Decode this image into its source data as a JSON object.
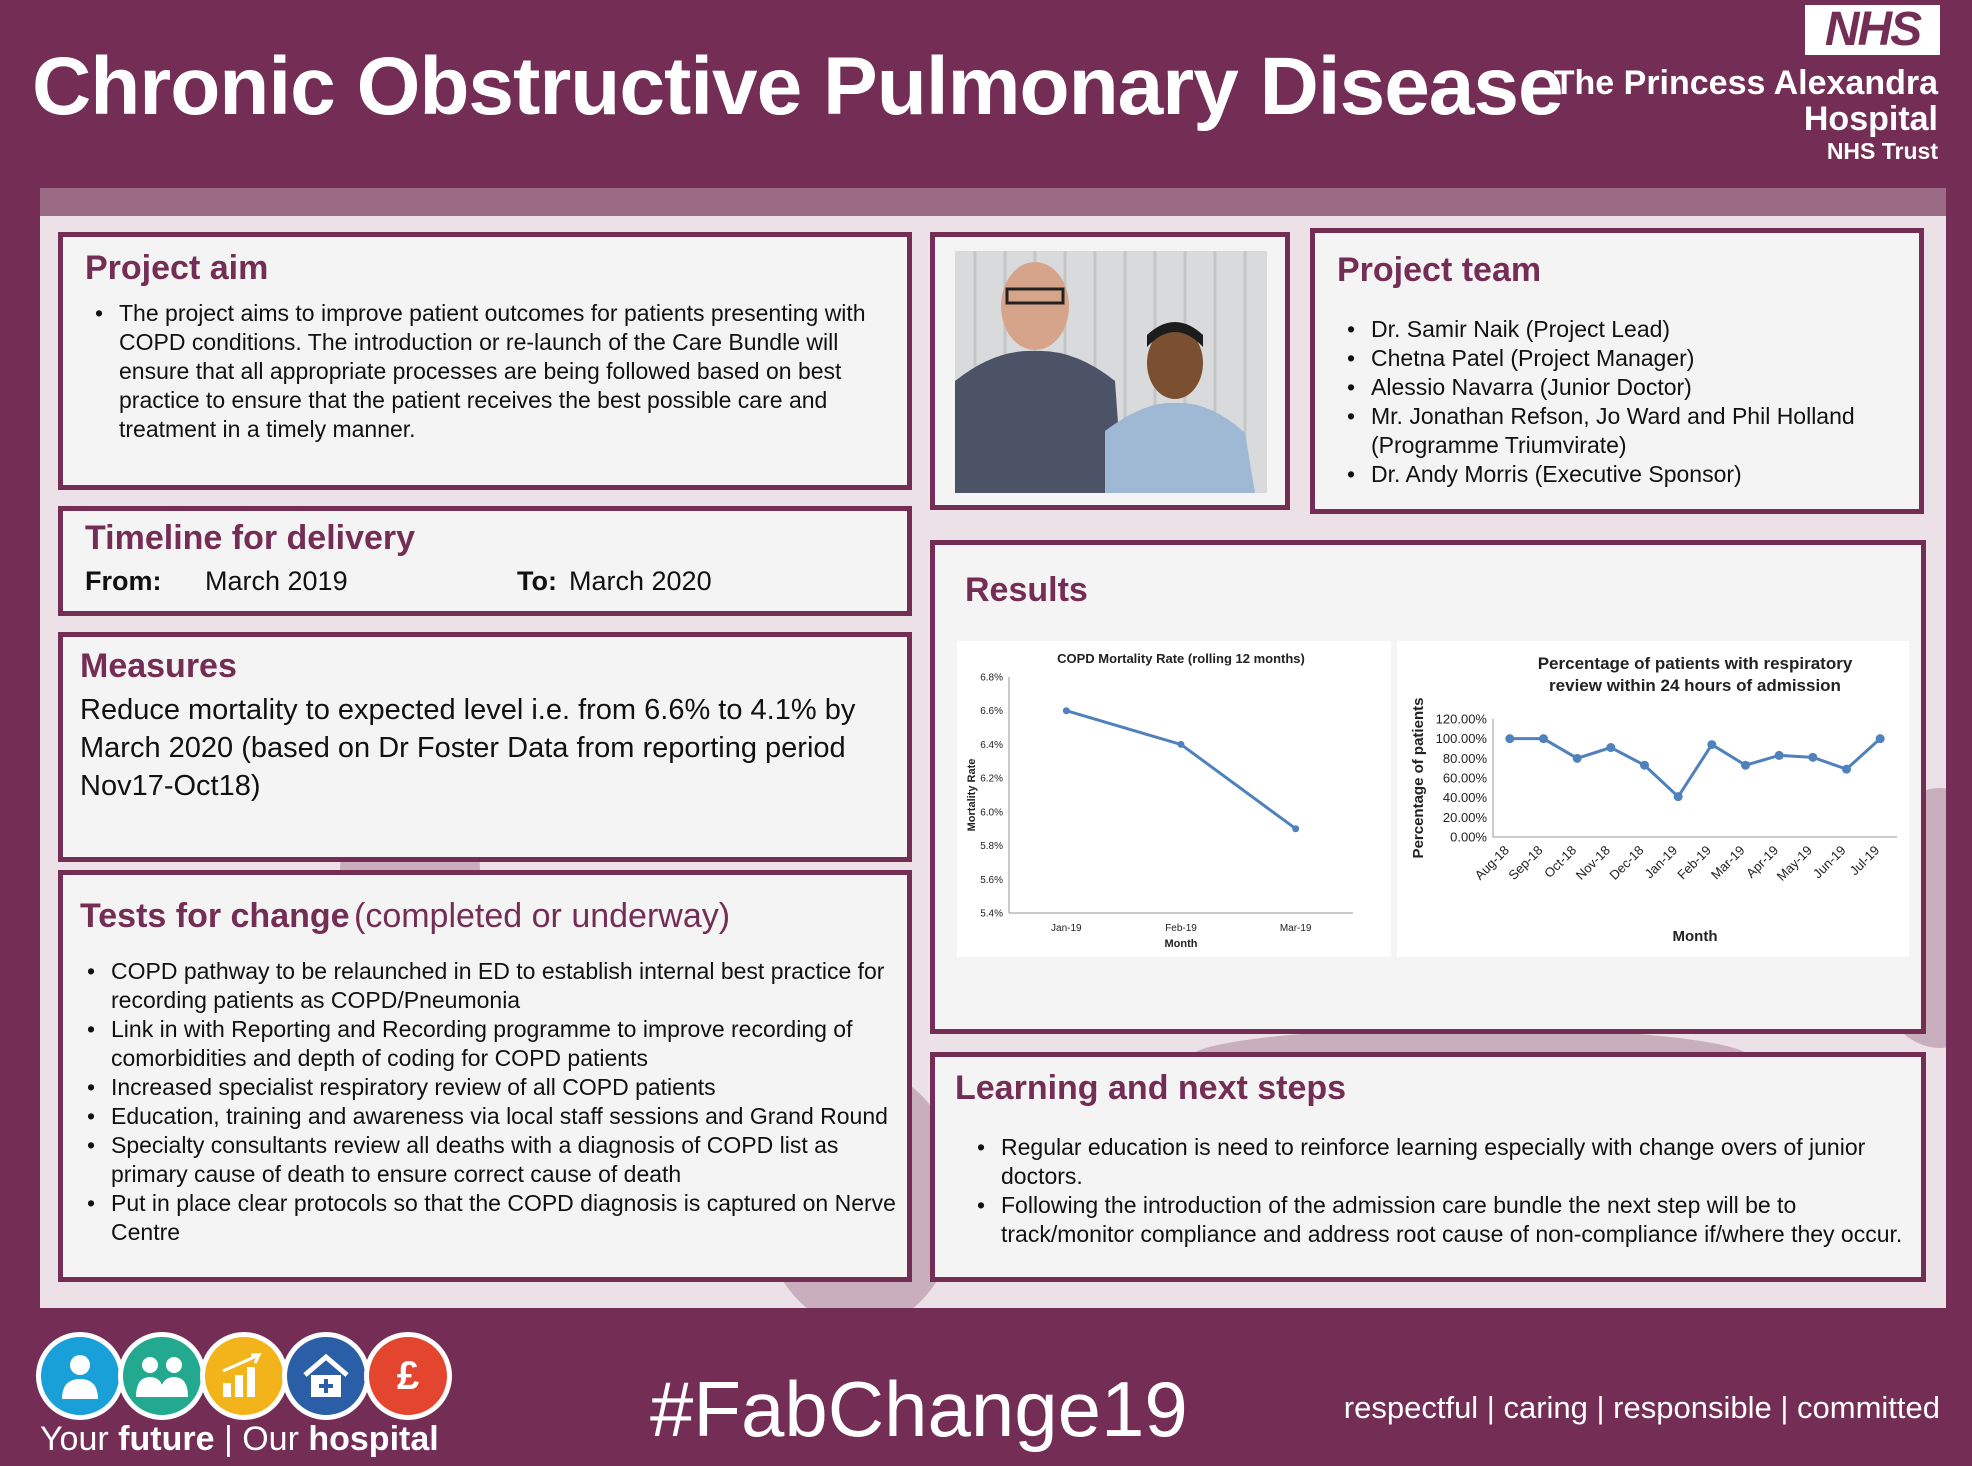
{
  "header": {
    "title": "Chronic Obstructive Pulmonary Disease",
    "nhs_logo": "NHS",
    "org_line1": "The Princess Alexandra",
    "org_line2": "Hospital",
    "org_line3": "NHS Trust"
  },
  "project_aim": {
    "heading": "Project aim",
    "text": "The project aims to improve patient outcomes for patients presenting with COPD conditions. The introduction or re-launch of the Care Bundle will ensure that all appropriate processes are being followed based on best practice to ensure that the patient receives the best possible care and treatment in a timely manner."
  },
  "timeline": {
    "heading": "Timeline for delivery",
    "from_label": "From:",
    "from_value": "March 2019",
    "to_label": "To:",
    "to_value": "March 2020"
  },
  "measures": {
    "heading": "Measures",
    "text": "Reduce mortality to expected level i.e. from 6.6% to 4.1% by March 2020 (based on Dr Foster Data from reporting period Nov17-Oct18)"
  },
  "tests": {
    "heading": "Tests for change",
    "heading_suffix": "(completed or underway)",
    "items": [
      "COPD pathway to be relaunched in ED to establish internal best practice for recording patients as COPD/Pneumonia",
      "Link in with Reporting and Recording programme to improve recording of comorbidities and depth of coding for COPD patients",
      "Increased specialist respiratory review of all COPD patients",
      "Education, training and awareness via local staff sessions and Grand Round",
      "Specialty consultants review  all deaths with a diagnosis of COPD list as primary cause of death to ensure correct cause of death",
      " Put in place clear protocols so that the COPD diagnosis is captured on Nerve Centre"
    ]
  },
  "team": {
    "heading": "Project team",
    "members": [
      "Dr. Samir Naik (Project Lead)",
      "Chetna Patel (Project Manager)",
      "Alessio Navarra (Junior Doctor)",
      "Mr. Jonathan Refson, Jo Ward and Phil Holland (Programme Triumvirate)",
      "Dr. Andy Morris (Executive Sponsor)"
    ]
  },
  "results": {
    "heading": "Results"
  },
  "chart_data": [
    {
      "type": "line",
      "title": "COPD Mortality Rate (rolling 12 months)",
      "xlabel": "Month",
      "ylabel": "Mortality Rate",
      "categories": [
        "Jan-19",
        "Feb-19",
        "Mar-19"
      ],
      "values": [
        6.6,
        6.4,
        5.9
      ],
      "ylim": [
        5.4,
        6.8
      ],
      "yticks": [
        "5.4%",
        "5.6%",
        "5.8%",
        "6.0%",
        "6.2%",
        "6.4%",
        "6.6%",
        "6.8%"
      ],
      "color": "#4f81bd",
      "grid": false
    },
    {
      "type": "line",
      "title": "Percentage of patients with respiratory review within 24 hours of admission",
      "title_line1": "Percentage of patients with respiratory",
      "title_line2": "review within 24 hours of admission",
      "xlabel": "Month",
      "ylabel": "Percentage of patients",
      "categories": [
        "Aug-18",
        "Sep-18",
        "Oct-18",
        "Nov-18",
        "Dec-18",
        "Jan-19",
        "Feb-19",
        "Mar-19",
        "Apr-19",
        "May-19",
        "Jun-19",
        "Jul-19"
      ],
      "values": [
        100,
        100,
        80,
        91,
        73,
        41,
        94,
        73,
        83,
        81,
        69,
        100
      ],
      "ylim": [
        0,
        120
      ],
      "yticks": [
        "0.00%",
        "20.00%",
        "40.00%",
        "60.00%",
        "80.00%",
        "100.00%",
        "120.00%"
      ],
      "color": "#4f81bd",
      "markers": true,
      "grid": false
    }
  ],
  "learning": {
    "heading": "Learning and next steps",
    "items": [
      "Regular education is need to reinforce learning especially with change overs of junior doctors.",
      "Following the introduction of the admission care bundle the next step will be to track/monitor compliance and address root cause of non-compliance if/where they occur."
    ]
  },
  "footer": {
    "icon_names": [
      "patient-icon",
      "family-icon",
      "growth-chart-icon",
      "hospital-icon",
      "pound-icon"
    ],
    "icon_colors": [
      "#1aa0d8",
      "#22a98f",
      "#f2b31b",
      "#2a5fa8",
      "#e3452f"
    ],
    "pound_symbol": "£",
    "tagline_1": "Your",
    "tagline_2": "future",
    "tagline_3": "| Our",
    "tagline_4": "hospital",
    "hashtag": "#FabChange19",
    "values": "respectful  |  caring  |  responsible  |  committed"
  }
}
